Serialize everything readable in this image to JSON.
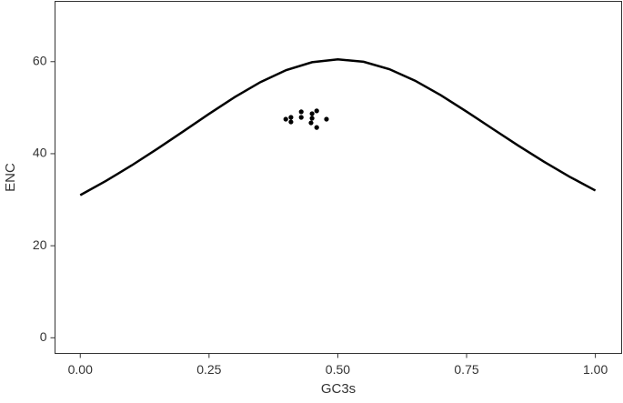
{
  "chart_data": {
    "type": "scatter",
    "x_label": "GC3s",
    "y_label": "ENC",
    "xlim": [
      -0.049,
      1.051
    ],
    "ylim": [
      -3.4,
      73.1
    ],
    "xticks": [
      {
        "value": 0,
        "label": "0.00"
      },
      {
        "value": 0.25,
        "label": "0.25"
      },
      {
        "value": 0.5,
        "label": "0.50"
      },
      {
        "value": 0.75,
        "label": "0.75"
      },
      {
        "value": 1,
        "label": "1.00"
      }
    ],
    "yticks": [
      0,
      20,
      40,
      60
    ],
    "curve": {
      "color": "#000000",
      "x": [
        0,
        0.05,
        0.1,
        0.15,
        0.2,
        0.25,
        0.3,
        0.35,
        0.4,
        0.45,
        0.5,
        0.55,
        0.6,
        0.65,
        0.7,
        0.75,
        0.8,
        0.85,
        0.9,
        0.95,
        1
      ],
      "values": [
        31,
        34.09,
        37.47,
        41.08,
        44.85,
        48.65,
        52.3,
        55.56,
        58.17,
        59.88,
        60.5,
        59.98,
        58.37,
        55.86,
        52.7,
        49.15,
        45.45,
        41.78,
        38.27,
        34.99,
        32
      ]
    },
    "points": {
      "color": "#000000",
      "x": [
        0.399,
        0.409,
        0.409,
        0.429,
        0.429,
        0.45,
        0.45,
        0.459,
        0.448,
        0.459,
        0.478
      ],
      "values": [
        47.5,
        47.9,
        46.9,
        49.1,
        47.9,
        48.7,
        47.7,
        49.3,
        46.7,
        45.7,
        47.5
      ]
    }
  }
}
